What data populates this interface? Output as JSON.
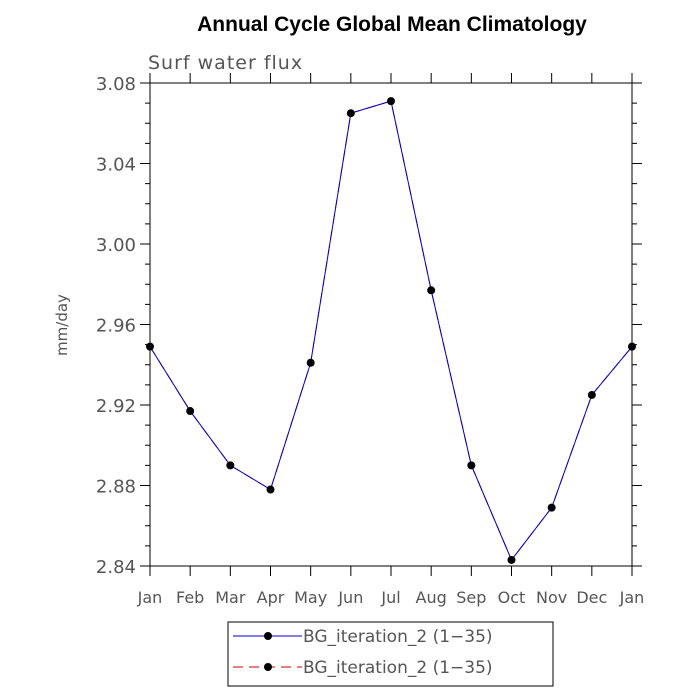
{
  "chart_data": {
    "type": "line",
    "title": "Annual Cycle Global Mean Climatology",
    "subtitle": "Surf water flux",
    "xlabel": "",
    "ylabel": "mm/day",
    "categories": [
      "Jan",
      "Feb",
      "Mar",
      "Apr",
      "May",
      "Jun",
      "Jul",
      "Aug",
      "Sep",
      "Oct",
      "Nov",
      "Dec",
      "Jan"
    ],
    "ylim": [
      2.84,
      3.08
    ],
    "yticks": [
      "3.08",
      "3.04",
      "3.00",
      "2.96",
      "2.92",
      "2.88",
      "2.84"
    ],
    "series": [
      {
        "name": "BG_iteration_2 (1−35)",
        "color": "#0000cc",
        "line_style": "solid",
        "values": [
          2.949,
          2.917,
          2.89,
          2.878,
          2.941,
          3.065,
          3.071,
          2.977,
          2.89,
          2.843,
          2.869,
          2.925,
          2.949
        ]
      },
      {
        "name": "BG_iteration_2 (1−35)",
        "color": "#cc0000",
        "line_style": "dashed",
        "values": [
          2.949,
          2.917,
          2.89,
          2.878,
          2.941,
          3.065,
          3.071,
          2.977,
          2.89,
          2.843,
          2.869,
          2.925,
          2.949
        ]
      }
    ],
    "legend_position": "bottom",
    "grid": false
  }
}
